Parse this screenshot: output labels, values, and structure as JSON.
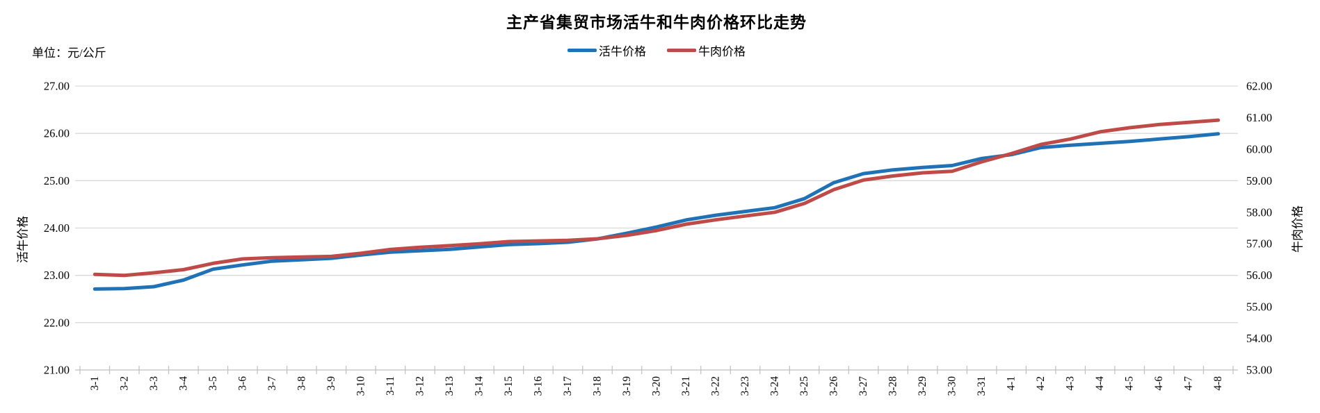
{
  "title": "主产省集贸市场活牛和牛肉价格环比走势",
  "unit_label": "单位：元/公斤",
  "legend": [
    {
      "label": "活牛价格",
      "color": "#1F72B5"
    },
    {
      "label": "牛肉价格",
      "color": "#BE4B48"
    }
  ],
  "left_axis": {
    "title": "活牛价格",
    "min": 21,
    "max": 27,
    "tick_labels": [
      "27.00",
      "26.00",
      "25.00",
      "24.00",
      "23.00",
      "22.00",
      "21.00"
    ]
  },
  "right_axis": {
    "title": "牛肉价格",
    "min": 53,
    "max": 62,
    "tick_labels": [
      "62.00",
      "61.00",
      "60.00",
      "59.00",
      "58.00",
      "57.00",
      "56.00",
      "55.00",
      "54.00",
      "53.00"
    ]
  },
  "chart_data": {
    "type": "line",
    "title": "主产省集贸市场活牛和牛肉价格环比走势",
    "unit": "元/公斤",
    "grid": true,
    "legend_position": "top",
    "categories": [
      "3-1",
      "3-2",
      "3-3",
      "3-4",
      "3-5",
      "3-6",
      "3-7",
      "3-8",
      "3-9",
      "3-10",
      "3-11",
      "3-12",
      "3-13",
      "3-14",
      "3-15",
      "3-16",
      "3-17",
      "3-18",
      "3-19",
      "3-20",
      "3-21",
      "3-22",
      "3-23",
      "3-24",
      "3-25",
      "3-26",
      "3-27",
      "3-28",
      "3-29",
      "3-30",
      "3-31",
      "4-1",
      "4-2",
      "4-3",
      "4-4",
      "4-5",
      "4-6",
      "4-7",
      "4-8"
    ],
    "left_ylim": [
      21,
      27
    ],
    "right_ylim": [
      53,
      62
    ],
    "series": [
      {
        "name": "活牛价格",
        "axis": "left",
        "color": "#1F72B5",
        "values": [
          22.71,
          22.72,
          22.76,
          22.9,
          23.13,
          23.22,
          23.3,
          23.33,
          23.36,
          23.43,
          23.49,
          23.52,
          23.55,
          23.6,
          23.65,
          23.67,
          23.7,
          23.77,
          23.89,
          24.02,
          24.17,
          24.27,
          24.35,
          24.43,
          24.62,
          24.96,
          25.15,
          25.23,
          25.28,
          25.32,
          25.47,
          25.55,
          25.7,
          25.75,
          25.79,
          25.83,
          25.88,
          25.93,
          25.99
        ]
      },
      {
        "name": "牛肉价格",
        "axis": "right",
        "color": "#BE4B48",
        "values": [
          56.03,
          56.0,
          56.08,
          56.18,
          56.38,
          56.52,
          56.56,
          56.58,
          56.6,
          56.7,
          56.82,
          56.89,
          56.94,
          57.0,
          57.07,
          57.09,
          57.11,
          57.16,
          57.27,
          57.42,
          57.62,
          57.76,
          57.88,
          58.0,
          58.28,
          58.72,
          59.02,
          59.15,
          59.25,
          59.3,
          59.6,
          59.86,
          60.15,
          60.32,
          60.55,
          60.68,
          60.78,
          60.85,
          60.92
        ]
      }
    ]
  },
  "colors": {
    "gridline": "#D9D9D9",
    "axis_line": "#BFBFBF",
    "text": "#000000"
  }
}
